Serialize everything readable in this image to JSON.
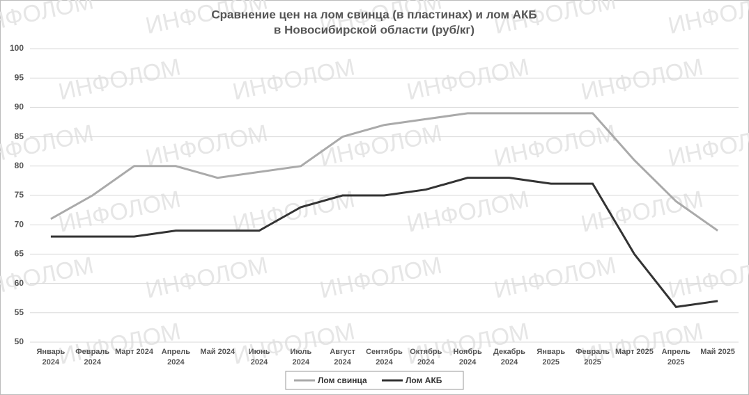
{
  "chart_data": {
    "type": "line",
    "title": [
      "Сравнение цен на лом свинца (в пластинах) и лом АКБ",
      "в Новосибирской области (руб/кг)"
    ],
    "watermark": "ИНФОЛОМ",
    "categories": [
      "Январь 2024",
      "Февраль 2024",
      "Март 2024",
      "Апрель 2024",
      "Май 2024",
      "Июнь 2024",
      "Июль 2024",
      "Август 2024",
      "Сентябрь 2024",
      "Октябрь 2024",
      "Ноябрь 2024",
      "Декабрь 2024",
      "Январь 2025",
      "Февраль 2025",
      "Март 2025",
      "Апрель 2025",
      "Май 2025"
    ],
    "series": [
      {
        "name": "Лом свинца",
        "color": "#aaaaaa",
        "values": [
          71,
          75,
          80,
          80,
          78,
          79,
          80,
          85,
          87,
          88,
          89,
          89,
          89,
          89,
          81,
          74,
          69
        ]
      },
      {
        "name": "Лом АКБ",
        "color": "#333333",
        "values": [
          68,
          68,
          68,
          69,
          69,
          69,
          73,
          75,
          75,
          76,
          78,
          78,
          77,
          77,
          65,
          56,
          57
        ]
      }
    ],
    "ylim": [
      50,
      100
    ],
    "yticks": [
      50,
      55,
      60,
      65,
      70,
      75,
      80,
      85,
      90,
      95,
      100
    ],
    "grid": true,
    "legend": "bottom"
  }
}
